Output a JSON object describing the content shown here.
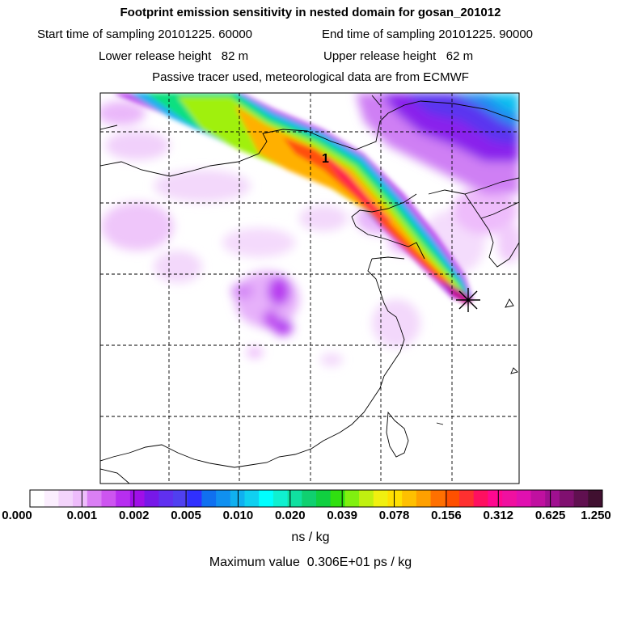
{
  "header": {
    "title": "Footprint emission sensitivity in nested domain for gosan_201012",
    "start_time": "Start time of sampling 20101225. 60000",
    "end_time": "End time of sampling 20101225. 90000",
    "lower_height": "Lower release height   82 m",
    "upper_height": "Upper release height   62 m",
    "tracer_note": "Passive tracer used, meteorological data are from ECMWF"
  },
  "map": {
    "plume_marker_label": "1",
    "release_marker": "star-x-icon"
  },
  "colorbar": {
    "tick_labels": [
      "0.000",
      "0.001",
      "0.002",
      "0.005",
      "0.010",
      "0.020",
      "0.039",
      "0.078",
      "0.156",
      "0.312",
      "0.625",
      "1.250"
    ],
    "colors": [
      "#ffffff",
      "#fbeefe",
      "#f3d4fb",
      "#eebcfb",
      "#da7ff4",
      "#cd55f0",
      "#b72ef0",
      "#a00fe8",
      "#7718e8",
      "#6030f0",
      "#5040f0",
      "#3030ff",
      "#1070f0",
      "#1090f0",
      "#10b0f0",
      "#10d0f0",
      "#00ffff",
      "#10f0d0",
      "#10e0a0",
      "#10d070",
      "#10d040",
      "#30e010",
      "#80f010",
      "#c0f010",
      "#f0f010",
      "#ffe000",
      "#ffc000",
      "#ffa000",
      "#ff7000",
      "#ff5000",
      "#ff3030",
      "#ff1060",
      "#ff0890",
      "#f010a0",
      "#e010b0",
      "#c010a0",
      "#a01090",
      "#801070",
      "#601050",
      "#401030"
    ],
    "unit": "ns / kg",
    "max_value": "Maximum value  0.306E+01 ps / kg"
  }
}
